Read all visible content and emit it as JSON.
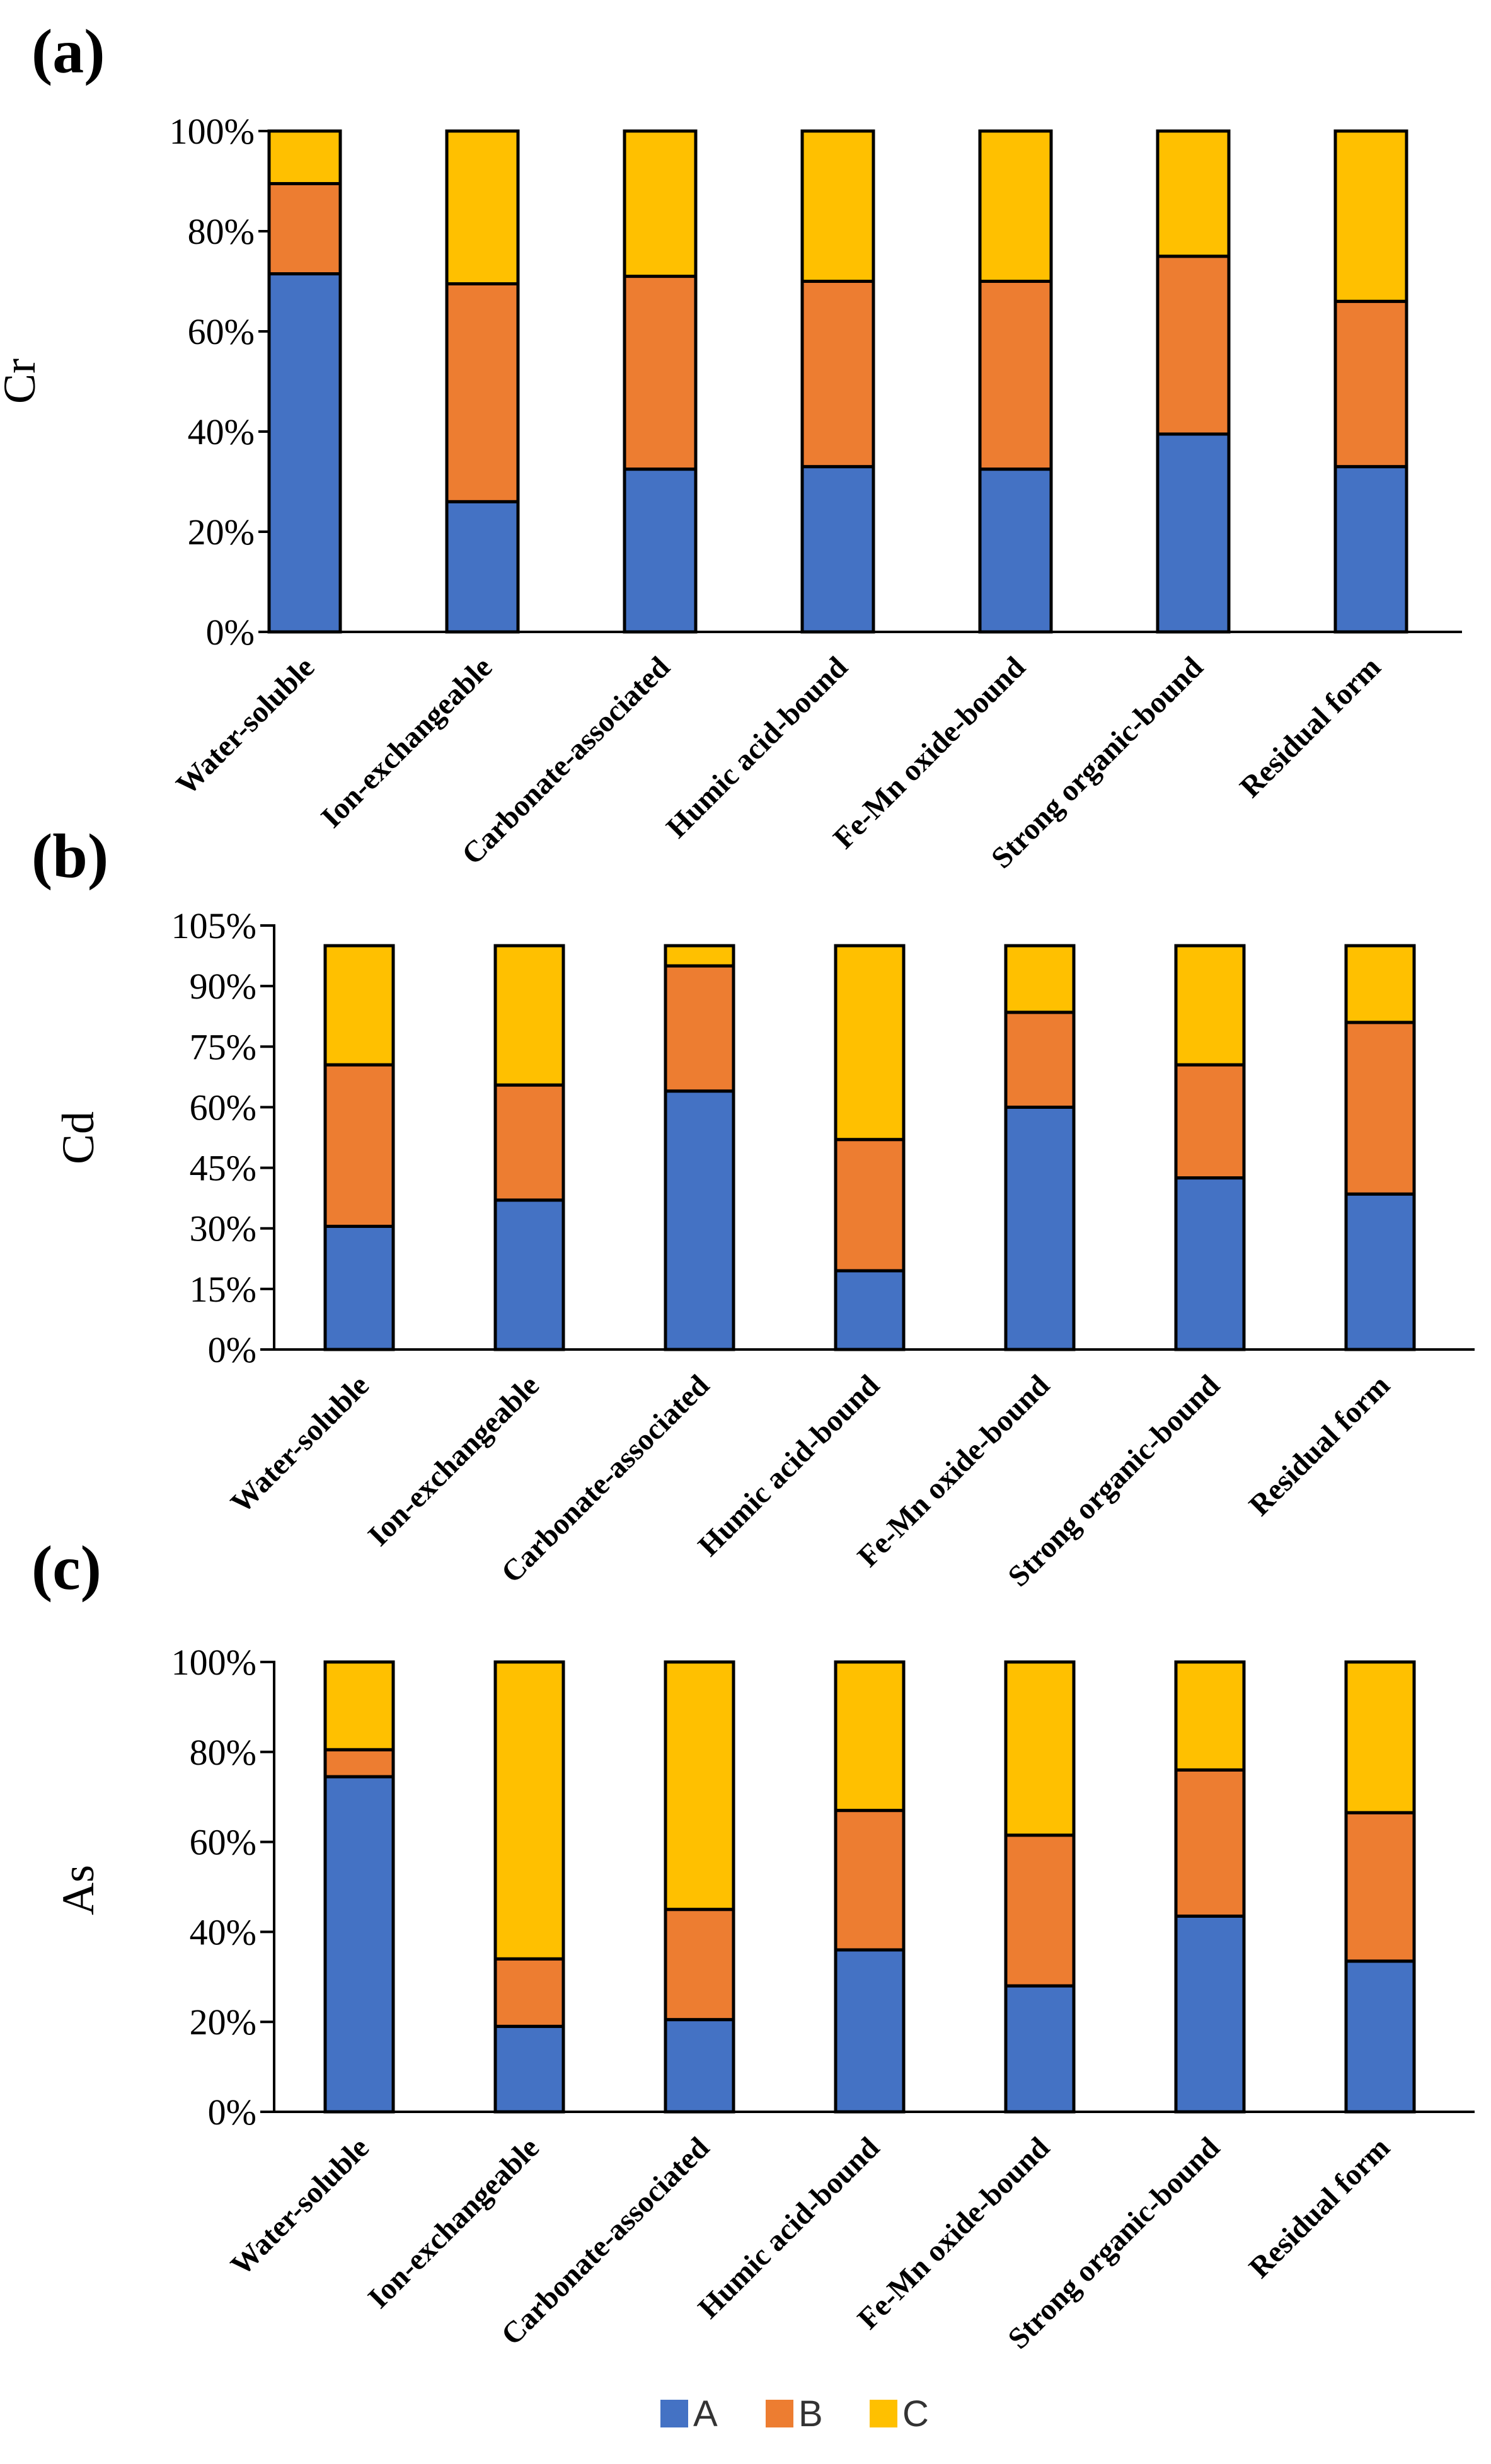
{
  "chart_data": [
    {
      "type": "bar",
      "stacked": true,
      "panel": "(a)",
      "ylabel": "Cr",
      "ylim": [
        0,
        100
      ],
      "yticks": [
        0,
        20,
        40,
        60,
        80,
        100
      ],
      "ytick_labels": [
        "0%",
        "20%",
        "40%",
        "60%",
        "80%",
        "100%"
      ],
      "categories": [
        "Water-soluble",
        "Ion-exchangeable",
        "Carbonate-associated",
        "Humic acid-bound",
        "Fe-Mn oxide-bound",
        "Strong organic-bound",
        "Residual form"
      ],
      "series": [
        {
          "name": "A",
          "values": [
            71.5,
            26,
            32.5,
            33,
            32.5,
            39.5,
            33
          ]
        },
        {
          "name": "B",
          "values": [
            18,
            43.5,
            38.5,
            37,
            37.5,
            35.5,
            33
          ]
        },
        {
          "name": "C",
          "values": [
            10.5,
            30.5,
            29,
            30,
            30,
            25,
            34
          ]
        }
      ]
    },
    {
      "type": "bar",
      "stacked": true,
      "panel": "(b)",
      "ylabel": "Cd",
      "ylim": [
        0,
        105
      ],
      "yticks": [
        0,
        15,
        30,
        45,
        60,
        75,
        90,
        105
      ],
      "ytick_labels": [
        "0%",
        "15%",
        "30%",
        "45%",
        "60%",
        "75%",
        "90%",
        "105%"
      ],
      "categories": [
        "Water-soluble",
        "Ion-exchangeable",
        "Carbonate-associated",
        "Humic acid-bound",
        "Fe-Mn oxide-bound",
        "Strong organic-bound",
        "Residual form"
      ],
      "series": [
        {
          "name": "A",
          "values": [
            30.5,
            37,
            64,
            19.5,
            60,
            42.5,
            38.5
          ]
        },
        {
          "name": "B",
          "values": [
            40,
            28.5,
            31,
            32.5,
            23.5,
            28,
            42.5
          ]
        },
        {
          "name": "C",
          "values": [
            29.5,
            34.5,
            5,
            48,
            16.5,
            29.5,
            19
          ]
        }
      ]
    },
    {
      "type": "bar",
      "stacked": true,
      "panel": "(c)",
      "ylabel": "As",
      "ylim": [
        0,
        100
      ],
      "yticks": [
        0,
        20,
        40,
        60,
        80,
        100
      ],
      "ytick_labels": [
        "0%",
        "20%",
        "40%",
        "60%",
        "80%",
        "100%"
      ],
      "categories": [
        "Water-soluble",
        "Ion-exchangeable",
        "Carbonate-associated",
        "Humic acid-bound",
        "Fe-Mn oxide-bound",
        "Strong organic-bound",
        "Residual form"
      ],
      "series": [
        {
          "name": "A",
          "values": [
            74.5,
            19,
            20.5,
            36,
            28,
            43.5,
            33.5
          ]
        },
        {
          "name": "B",
          "values": [
            6,
            15,
            24.5,
            31,
            33.5,
            32.5,
            33
          ]
        },
        {
          "name": "C",
          "values": [
            19.5,
            66,
            55,
            33,
            38.5,
            24,
            33.5
          ]
        }
      ]
    }
  ],
  "colors": {
    "A": "#4472C4",
    "B": "#ED7D31",
    "C": "#FFC000"
  },
  "legend": {
    "placement": "bottom-center",
    "items": [
      {
        "name": "A",
        "color": "#4472C4"
      },
      {
        "name": "B",
        "color": "#ED7D31"
      },
      {
        "name": "C",
        "color": "#FFC000"
      }
    ]
  }
}
